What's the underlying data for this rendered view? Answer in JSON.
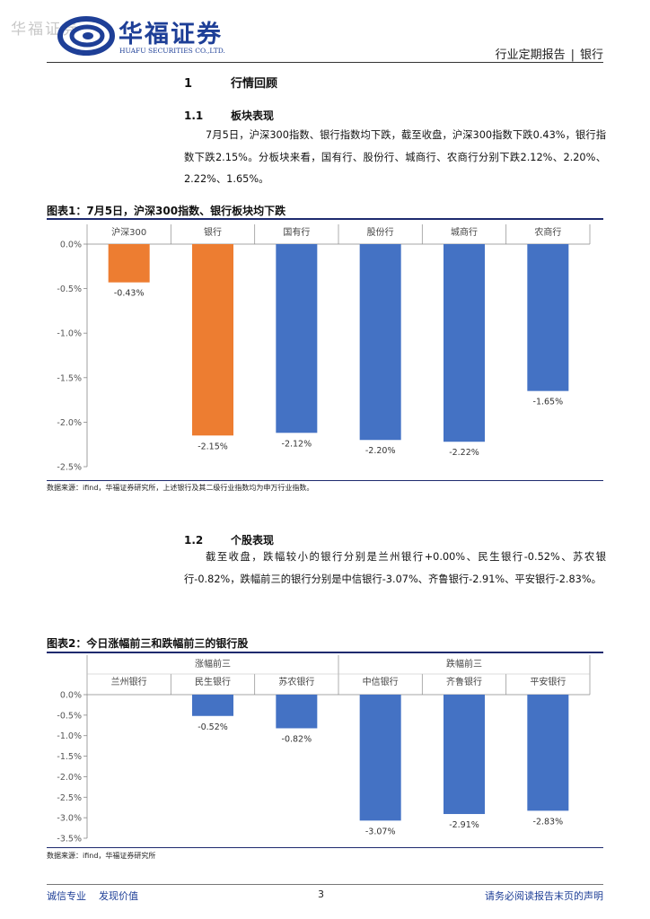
{
  "header": {
    "watermark": "华福证券",
    "logo_cn": "华福证券",
    "logo_en": "HUAFU SECURITIES CO.,LTD.",
    "report_type": "行业定期报告",
    "separator": "|",
    "industry": "银行"
  },
  "section1": {
    "num": "1",
    "title": "行情回顾"
  },
  "section1_1": {
    "num": "1.1",
    "title": "板块表现",
    "body": "7月5日，沪深300指数、银行指数均下跌，截至收盘，沪深300指数下跌0.43%，银行指数下跌2.15%。分板块来看，国有行、股份行、城商行、农商行分别下跌2.12%、2.20%、2.22%、1.65%。"
  },
  "figure1": {
    "title": "图表1：7月5日，沪深300指数、银行板块均下跌",
    "source": "数据来源：ifind，华福证券研究所，上述银行及其二级行业指数均为申万行业指数。"
  },
  "section1_2": {
    "num": "1.2",
    "title": "个股表现",
    "body": "截至收盘，跌幅较小的银行分别是兰州银行+0.00%、民生银行-0.52%、苏农银行-0.82%，跌幅前三的银行分别是中信银行-3.07%、齐鲁银行-2.91%、平安银行-2.83%。"
  },
  "figure2": {
    "title": "图表2：今日涨幅前三和跌幅前三的银行股",
    "source": "数据来源：ifind，华福证券研究所"
  },
  "chart_data": [
    {
      "type": "bar",
      "categories": [
        "沪深300",
        "银行",
        "国有行",
        "股份行",
        "城商行",
        "农商行"
      ],
      "values": [
        -0.43,
        -2.15,
        -2.12,
        -2.2,
        -2.22,
        -1.65
      ],
      "labels": [
        "-0.43%",
        "-2.15%",
        "-2.12%",
        "-2.20%",
        "-2.22%",
        "-1.65%"
      ],
      "colors": [
        "#ED7D31",
        "#ED7D31",
        "#4472C4",
        "#4472C4",
        "#4472C4",
        "#4472C4"
      ],
      "ylim": [
        -2.5,
        0
      ],
      "yticks": [
        "0.0%",
        "-0.5%",
        "-1.0%",
        "-1.5%",
        "-2.0%",
        "-2.5%"
      ],
      "title": "",
      "xlabel": "",
      "ylabel": ""
    },
    {
      "type": "bar",
      "groups": [
        "涨幅前三",
        "跌幅前三"
      ],
      "categories": [
        "兰州银行",
        "民生银行",
        "苏农银行",
        "中信银行",
        "齐鲁银行",
        "平安银行"
      ],
      "values": [
        0.0,
        -0.52,
        -0.82,
        -3.07,
        -2.91,
        -2.83
      ],
      "labels": [
        "",
        "-0.52%",
        "-0.82%",
        "-3.07%",
        "-2.91%",
        "-2.83%"
      ],
      "colors": [
        "#4472C4",
        "#4472C4",
        "#4472C4",
        "#4472C4",
        "#4472C4",
        "#4472C4"
      ],
      "ylim": [
        -3.5,
        0
      ],
      "yticks": [
        "0.0%",
        "-0.5%",
        "-1.0%",
        "-1.5%",
        "-2.0%",
        "-2.5%",
        "-3.0%",
        "-3.5%"
      ],
      "title": "",
      "xlabel": "",
      "ylabel": ""
    }
  ],
  "footer": {
    "slogan1": "诚信专业",
    "slogan2": "发现价值",
    "page": "3",
    "disclaimer": "请务必阅读报告末页的声明"
  }
}
